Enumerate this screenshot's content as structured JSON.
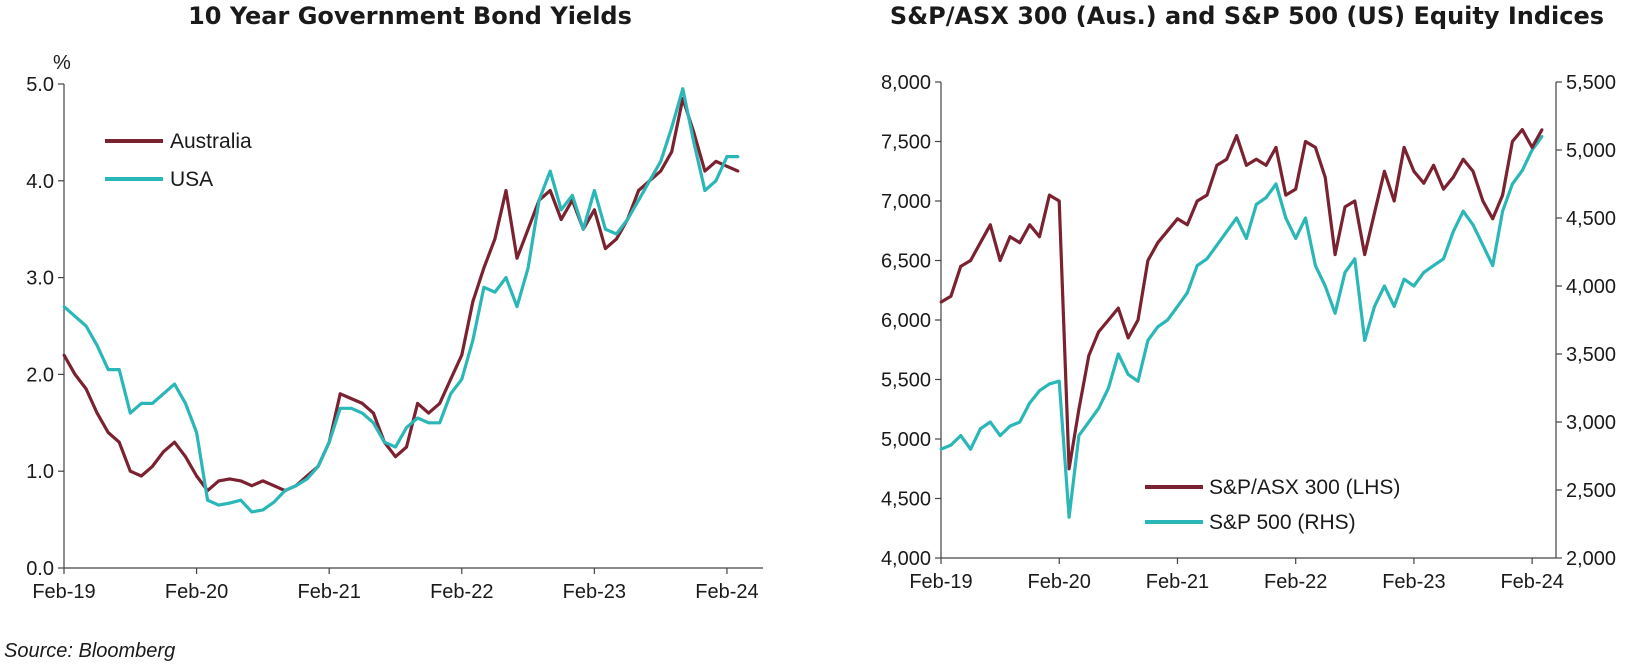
{
  "chart_data": [
    {
      "type": "line",
      "title": "10 Year Government Bond Yields",
      "yunit": "%",
      "ylim": [
        0,
        5
      ],
      "yticks": [
        "0.0",
        "1.0",
        "2.0",
        "3.0",
        "4.0",
        "5.0"
      ],
      "xlim": [
        "Feb-19",
        "Mar-24"
      ],
      "xticks": [
        "Feb-19",
        "Feb-20",
        "Feb-21",
        "Feb-22",
        "Feb-23",
        "Feb-24"
      ],
      "legend_position": "top-left",
      "series": [
        {
          "name": "Australia",
          "color": "#7b2230",
          "points": [
            [
              "Feb-19",
              2.2
            ],
            [
              "Mar-19",
              2.0
            ],
            [
              "Apr-19",
              1.85
            ],
            [
              "May-19",
              1.6
            ],
            [
              "Jun-19",
              1.4
            ],
            [
              "Jul-19",
              1.3
            ],
            [
              "Aug-19",
              1.0
            ],
            [
              "Sep-19",
              0.95
            ],
            [
              "Oct-19",
              1.05
            ],
            [
              "Nov-19",
              1.2
            ],
            [
              "Dec-19",
              1.3
            ],
            [
              "Jan-20",
              1.15
            ],
            [
              "Feb-20",
              0.95
            ],
            [
              "Mar-20",
              0.8
            ],
            [
              "Apr-20",
              0.9
            ],
            [
              "May-20",
              0.92
            ],
            [
              "Jun-20",
              0.9
            ],
            [
              "Jul-20",
              0.85
            ],
            [
              "Aug-20",
              0.9
            ],
            [
              "Sep-20",
              0.85
            ],
            [
              "Oct-20",
              0.8
            ],
            [
              "Nov-20",
              0.85
            ],
            [
              "Dec-20",
              0.95
            ],
            [
              "Jan-21",
              1.05
            ],
            [
              "Feb-21",
              1.3
            ],
            [
              "Mar-21",
              1.8
            ],
            [
              "Apr-21",
              1.75
            ],
            [
              "May-21",
              1.7
            ],
            [
              "Jun-21",
              1.6
            ],
            [
              "Jul-21",
              1.3
            ],
            [
              "Aug-21",
              1.15
            ],
            [
              "Sep-21",
              1.25
            ],
            [
              "Oct-21",
              1.7
            ],
            [
              "Nov-21",
              1.6
            ],
            [
              "Dec-21",
              1.7
            ],
            [
              "Jan-22",
              1.95
            ],
            [
              "Feb-22",
              2.2
            ],
            [
              "Mar-22",
              2.75
            ],
            [
              "Apr-22",
              3.1
            ],
            [
              "May-22",
              3.4
            ],
            [
              "Jun-22",
              3.9
            ],
            [
              "Jul-22",
              3.2
            ],
            [
              "Aug-22",
              3.5
            ],
            [
              "Sep-22",
              3.8
            ],
            [
              "Oct-22",
              3.9
            ],
            [
              "Nov-22",
              3.6
            ],
            [
              "Dec-22",
              3.8
            ],
            [
              "Jan-23",
              3.5
            ],
            [
              "Feb-23",
              3.7
            ],
            [
              "Mar-23",
              3.3
            ],
            [
              "Apr-23",
              3.4
            ],
            [
              "May-23",
              3.6
            ],
            [
              "Jun-23",
              3.9
            ],
            [
              "Jul-23",
              4.0
            ],
            [
              "Aug-23",
              4.1
            ],
            [
              "Sep-23",
              4.3
            ],
            [
              "Oct-23",
              4.85
            ],
            [
              "Nov-23",
              4.5
            ],
            [
              "Dec-23",
              4.1
            ],
            [
              "Jan-24",
              4.2
            ],
            [
              "Feb-24",
              4.15
            ],
            [
              "Mar-24",
              4.1
            ]
          ]
        },
        {
          "name": "USA",
          "color": "#2bb7b8",
          "points": [
            [
              "Feb-19",
              2.7
            ],
            [
              "Mar-19",
              2.6
            ],
            [
              "Apr-19",
              2.5
            ],
            [
              "May-19",
              2.3
            ],
            [
              "Jun-19",
              2.05
            ],
            [
              "Jul-19",
              2.05
            ],
            [
              "Aug-19",
              1.6
            ],
            [
              "Sep-19",
              1.7
            ],
            [
              "Oct-19",
              1.7
            ],
            [
              "Nov-19",
              1.8
            ],
            [
              "Dec-19",
              1.9
            ],
            [
              "Jan-20",
              1.7
            ],
            [
              "Feb-20",
              1.4
            ],
            [
              "Mar-20",
              0.7
            ],
            [
              "Apr-20",
              0.65
            ],
            [
              "May-20",
              0.67
            ],
            [
              "Jun-20",
              0.7
            ],
            [
              "Jul-20",
              0.58
            ],
            [
              "Aug-20",
              0.6
            ],
            [
              "Sep-20",
              0.68
            ],
            [
              "Oct-20",
              0.8
            ],
            [
              "Nov-20",
              0.85
            ],
            [
              "Dec-20",
              0.92
            ],
            [
              "Jan-21",
              1.05
            ],
            [
              "Feb-21",
              1.3
            ],
            [
              "Mar-21",
              1.65
            ],
            [
              "Apr-21",
              1.65
            ],
            [
              "May-21",
              1.6
            ],
            [
              "Jun-21",
              1.5
            ],
            [
              "Jul-21",
              1.3
            ],
            [
              "Aug-21",
              1.25
            ],
            [
              "Sep-21",
              1.45
            ],
            [
              "Oct-21",
              1.55
            ],
            [
              "Nov-21",
              1.5
            ],
            [
              "Dec-21",
              1.5
            ],
            [
              "Jan-22",
              1.8
            ],
            [
              "Feb-22",
              1.95
            ],
            [
              "Mar-22",
              2.35
            ],
            [
              "Apr-22",
              2.9
            ],
            [
              "May-22",
              2.85
            ],
            [
              "Jun-22",
              3.0
            ],
            [
              "Jul-22",
              2.7
            ],
            [
              "Aug-22",
              3.1
            ],
            [
              "Sep-22",
              3.8
            ],
            [
              "Oct-22",
              4.1
            ],
            [
              "Nov-22",
              3.7
            ],
            [
              "Dec-22",
              3.85
            ],
            [
              "Jan-23",
              3.5
            ],
            [
              "Feb-23",
              3.9
            ],
            [
              "Mar-23",
              3.5
            ],
            [
              "Apr-23",
              3.45
            ],
            [
              "May-23",
              3.6
            ],
            [
              "Jun-23",
              3.8
            ],
            [
              "Jul-23",
              4.0
            ],
            [
              "Aug-23",
              4.2
            ],
            [
              "Sep-23",
              4.55
            ],
            [
              "Oct-23",
              4.95
            ],
            [
              "Nov-23",
              4.4
            ],
            [
              "Dec-23",
              3.9
            ],
            [
              "Jan-24",
              4.0
            ],
            [
              "Feb-24",
              4.25
            ],
            [
              "Mar-24",
              4.25
            ]
          ]
        }
      ]
    },
    {
      "type": "line",
      "title": "S&P/ASX 300 (Aus.) and S&P 500 (US) Equity Indices",
      "ylim_left": [
        4000,
        8000
      ],
      "yticks_left": [
        "4,000",
        "4,500",
        "5,000",
        "5,500",
        "6,000",
        "6,500",
        "7,000",
        "7,500",
        "8,000"
      ],
      "ylim_right": [
        2000,
        5500
      ],
      "yticks_right": [
        "2,000",
        "2,500",
        "3,000",
        "3,500",
        "4,000",
        "4,500",
        "5,000",
        "5,500"
      ],
      "xlim": [
        "Feb-19",
        "Mar-24"
      ],
      "xticks": [
        "Feb-19",
        "Feb-20",
        "Feb-21",
        "Feb-22",
        "Feb-23",
        "Feb-24"
      ],
      "legend_position": "bottom-center",
      "series": [
        {
          "name": "S&P/ASX 300 (LHS)",
          "axis": "left",
          "color": "#7b2230",
          "points": [
            [
              "Feb-19",
              6150
            ],
            [
              "Mar-19",
              6200
            ],
            [
              "Apr-19",
              6450
            ],
            [
              "May-19",
              6500
            ],
            [
              "Jun-19",
              6650
            ],
            [
              "Jul-19",
              6800
            ],
            [
              "Aug-19",
              6500
            ],
            [
              "Sep-19",
              6700
            ],
            [
              "Oct-19",
              6650
            ],
            [
              "Nov-19",
              6800
            ],
            [
              "Dec-19",
              6700
            ],
            [
              "Jan-20",
              7050
            ],
            [
              "Feb-20",
              7000
            ],
            [
              "Mar-20",
              4750
            ],
            [
              "Apr-20",
              5250
            ],
            [
              "May-20",
              5700
            ],
            [
              "Jun-20",
              5900
            ],
            [
              "Jul-20",
              6000
            ],
            [
              "Aug-20",
              6100
            ],
            [
              "Sep-20",
              5850
            ],
            [
              "Oct-20",
              6000
            ],
            [
              "Nov-20",
              6500
            ],
            [
              "Dec-20",
              6650
            ],
            [
              "Jan-21",
              6750
            ],
            [
              "Feb-21",
              6850
            ],
            [
              "Mar-21",
              6800
            ],
            [
              "Apr-21",
              7000
            ],
            [
              "May-21",
              7050
            ],
            [
              "Jun-21",
              7300
            ],
            [
              "Jul-21",
              7350
            ],
            [
              "Aug-21",
              7550
            ],
            [
              "Sep-21",
              7300
            ],
            [
              "Oct-21",
              7350
            ],
            [
              "Nov-21",
              7300
            ],
            [
              "Dec-21",
              7450
            ],
            [
              "Jan-22",
              7050
            ],
            [
              "Feb-22",
              7100
            ],
            [
              "Mar-22",
              7500
            ],
            [
              "Apr-22",
              7450
            ],
            [
              "May-22",
              7200
            ],
            [
              "Jun-22",
              6550
            ],
            [
              "Jul-22",
              6950
            ],
            [
              "Aug-22",
              7000
            ],
            [
              "Sep-22",
              6550
            ],
            [
              "Oct-22",
              6900
            ],
            [
              "Nov-22",
              7250
            ],
            [
              "Dec-22",
              7000
            ],
            [
              "Jan-23",
              7450
            ],
            [
              "Feb-23",
              7250
            ],
            [
              "Mar-23",
              7150
            ],
            [
              "Apr-23",
              7300
            ],
            [
              "May-23",
              7100
            ],
            [
              "Jun-23",
              7200
            ],
            [
              "Jul-23",
              7350
            ],
            [
              "Aug-23",
              7250
            ],
            [
              "Sep-23",
              7000
            ],
            [
              "Oct-23",
              6850
            ],
            [
              "Nov-23",
              7050
            ],
            [
              "Dec-23",
              7500
            ],
            [
              "Jan-24",
              7600
            ],
            [
              "Feb-24",
              7450
            ],
            [
              "Mar-24",
              7600
            ]
          ]
        },
        {
          "name": "S&P 500 (RHS)",
          "axis": "right",
          "color": "#2bb7b8",
          "points": [
            [
              "Feb-19",
              2800
            ],
            [
              "Mar-19",
              2830
            ],
            [
              "Apr-19",
              2900
            ],
            [
              "May-19",
              2800
            ],
            [
              "Jun-19",
              2950
            ],
            [
              "Jul-19",
              3000
            ],
            [
              "Aug-19",
              2900
            ],
            [
              "Sep-19",
              2970
            ],
            [
              "Oct-19",
              3000
            ],
            [
              "Nov-19",
              3140
            ],
            [
              "Dec-19",
              3230
            ],
            [
              "Jan-20",
              3280
            ],
            [
              "Feb-20",
              3300
            ],
            [
              "Mar-20",
              2300
            ],
            [
              "Apr-20",
              2900
            ],
            [
              "May-20",
              3000
            ],
            [
              "Jun-20",
              3100
            ],
            [
              "Jul-20",
              3250
            ],
            [
              "Aug-20",
              3500
            ],
            [
              "Sep-20",
              3350
            ],
            [
              "Oct-20",
              3300
            ],
            [
              "Nov-20",
              3600
            ],
            [
              "Dec-20",
              3700
            ],
            [
              "Jan-21",
              3750
            ],
            [
              "Feb-21",
              3850
            ],
            [
              "Mar-21",
              3950
            ],
            [
              "Apr-21",
              4150
            ],
            [
              "May-21",
              4200
            ],
            [
              "Jun-21",
              4300
            ],
            [
              "Jul-21",
              4400
            ],
            [
              "Aug-21",
              4500
            ],
            [
              "Sep-21",
              4350
            ],
            [
              "Oct-21",
              4600
            ],
            [
              "Nov-21",
              4650
            ],
            [
              "Dec-21",
              4750
            ],
            [
              "Jan-22",
              4500
            ],
            [
              "Feb-22",
              4350
            ],
            [
              "Mar-22",
              4500
            ],
            [
              "Apr-22",
              4150
            ],
            [
              "May-22",
              4000
            ],
            [
              "Jun-22",
              3800
            ],
            [
              "Jul-22",
              4100
            ],
            [
              "Aug-22",
              4200
            ],
            [
              "Sep-22",
              3600
            ],
            [
              "Oct-22",
              3850
            ],
            [
              "Nov-22",
              4000
            ],
            [
              "Dec-22",
              3850
            ],
            [
              "Jan-23",
              4050
            ],
            [
              "Feb-23",
              4000
            ],
            [
              "Mar-23",
              4100
            ],
            [
              "Apr-23",
              4150
            ],
            [
              "May-23",
              4200
            ],
            [
              "Jun-23",
              4400
            ],
            [
              "Jul-23",
              4550
            ],
            [
              "Aug-23",
              4450
            ],
            [
              "Sep-23",
              4300
            ],
            [
              "Oct-23",
              4150
            ],
            [
              "Nov-23",
              4550
            ],
            [
              "Dec-23",
              4750
            ],
            [
              "Jan-24",
              4850
            ],
            [
              "Feb-24",
              5000
            ],
            [
              "Mar-24",
              5100
            ]
          ]
        }
      ]
    }
  ],
  "footer": {
    "source": "Source: Bloomberg"
  }
}
